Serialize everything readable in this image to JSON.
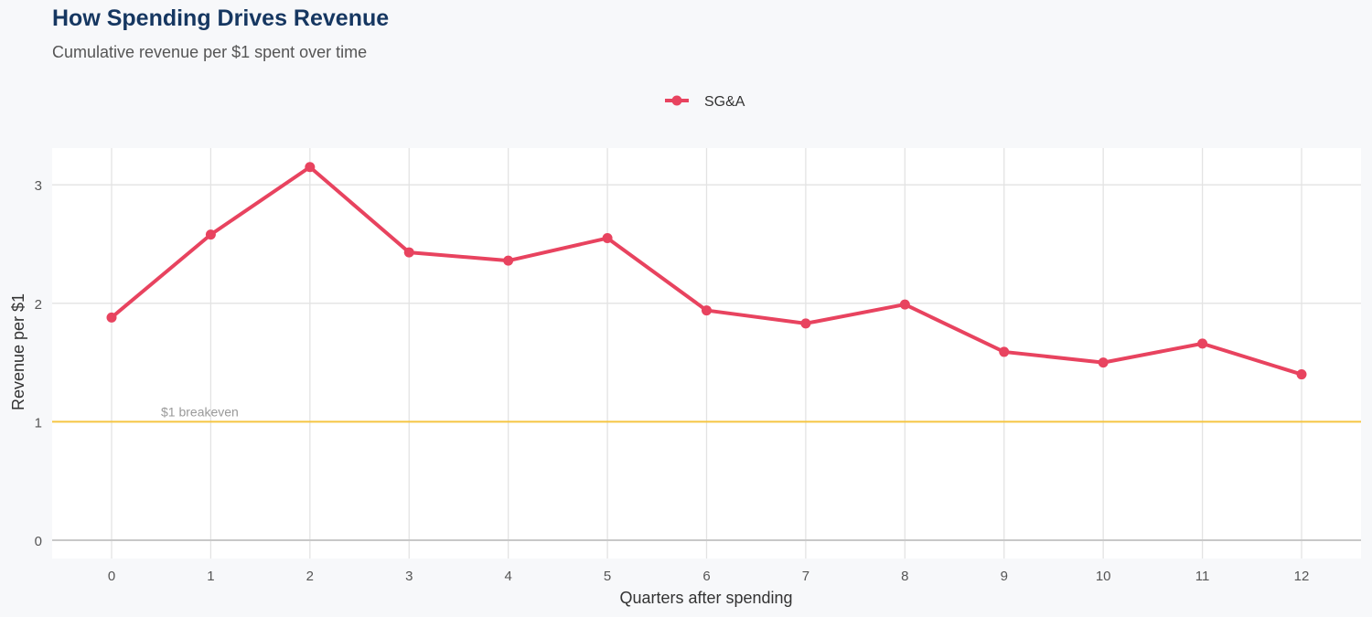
{
  "chart_data": {
    "type": "line",
    "title": "How Spending Drives Revenue",
    "subtitle": "Cumulative revenue per $1 spent over time",
    "xlabel": "Quarters after spending",
    "ylabel": "Revenue per $1",
    "x": [
      0,
      1,
      2,
      3,
      4,
      5,
      6,
      7,
      8,
      9,
      10,
      11,
      12
    ],
    "series": [
      {
        "name": "SG&A",
        "color": "#e8435f",
        "values": [
          1.88,
          2.58,
          3.15,
          2.43,
          2.36,
          2.55,
          1.94,
          1.83,
          1.99,
          1.59,
          1.5,
          1.66,
          1.4
        ]
      }
    ],
    "xlim": [
      -0.6,
      12.6
    ],
    "ylim": [
      -0.15,
      3.32
    ],
    "yticks": [
      0,
      1,
      2,
      3
    ],
    "xticks": [
      0,
      1,
      2,
      3,
      4,
      5,
      6,
      7,
      8,
      9,
      10,
      11,
      12
    ],
    "reference_line": {
      "y": 1,
      "label": "$1 breakeven",
      "color": "#f5c542"
    },
    "grid": true,
    "legend": "top-center"
  }
}
